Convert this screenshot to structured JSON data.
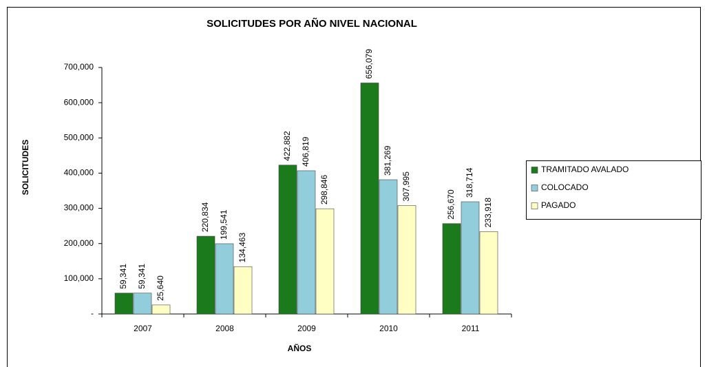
{
  "chart_data": {
    "type": "bar",
    "title": "SOLICITUDES POR AÑO NIVEL NACIONAL",
    "x_label": "AÑOS",
    "y_label": "SOLICITUDES",
    "categories": [
      "2007",
      "2008",
      "2009",
      "2010",
      "2011"
    ],
    "series": [
      {
        "name": "TRAMITADO AVALADO",
        "color": "#1b7a1b",
        "values": [
          59341,
          220834,
          422882,
          656079,
          256670
        ],
        "value_labels": [
          "59,341",
          "220,834",
          "422,882",
          "656,079",
          "256,670"
        ]
      },
      {
        "name": "COLOCADO",
        "color": "#92cddc",
        "values": [
          59341,
          199541,
          406819,
          381269,
          318714
        ],
        "value_labels": [
          "59,341",
          "199,541",
          "406,819",
          "381,269",
          "318,714"
        ]
      },
      {
        "name": "PAGADO",
        "color": "#ffffc4",
        "values": [
          25640,
          134463,
          298846,
          307995,
          233918
        ],
        "value_labels": [
          "25,640",
          "134,463",
          "298,846",
          "307,995",
          "233,918"
        ]
      }
    ],
    "ylim": [
      0,
      700000
    ],
    "yticks": [
      {
        "value": 0,
        "label": "-"
      },
      {
        "value": 100000,
        "label": "100,000"
      },
      {
        "value": 200000,
        "label": "200,000"
      },
      {
        "value": 300000,
        "label": "300,000"
      },
      {
        "value": 400000,
        "label": "400,000"
      },
      {
        "value": 500000,
        "label": "500,000"
      },
      {
        "value": 600000,
        "label": "600,000"
      },
      {
        "value": 700000,
        "label": "700,000"
      }
    ],
    "grid": false,
    "legend": "right"
  }
}
